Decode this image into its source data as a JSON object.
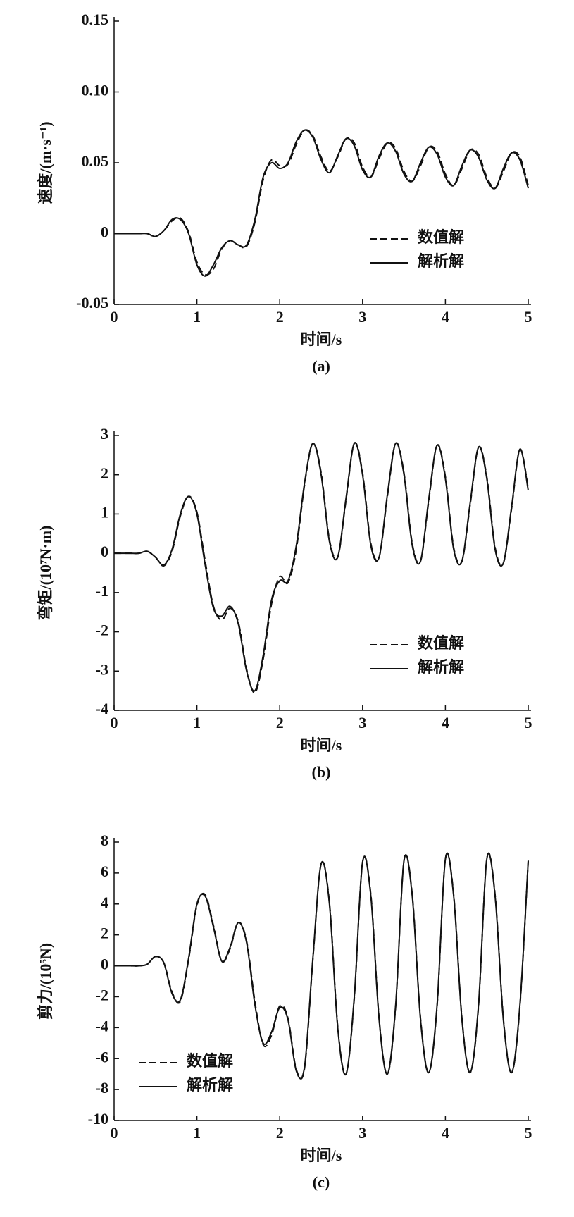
{
  "chart_data": [
    {
      "type": "line",
      "ylabel": "速度/(m·s⁻¹)",
      "xlabel": "时间/s",
      "caption": "(a)",
      "legend": "lower right",
      "xlim": [
        0,
        5
      ],
      "xticks": [
        0,
        1,
        2,
        3,
        4,
        5
      ],
      "ylim": [
        -0.05,
        0.15
      ],
      "yticks": [
        -0.05,
        0,
        0.05,
        {
          "value": 0.1,
          "label": "0.10"
        },
        0.15
      ],
      "x": [
        0,
        0.1,
        0.2,
        0.3,
        0.4,
        0.5,
        0.6,
        0.7,
        0.8,
        0.9,
        1,
        1.1,
        1.2,
        1.3,
        1.4,
        1.5,
        1.6,
        1.7,
        1.8,
        1.9,
        2,
        2.1,
        2.2,
        2.3,
        2.4,
        2.5,
        2.6,
        2.7,
        2.8,
        2.9,
        3,
        3.1,
        3.2,
        3.3,
        3.4,
        3.5,
        3.6,
        3.7,
        3.8,
        3.9,
        4,
        4.1,
        4.2,
        4.3,
        4.4,
        4.5,
        4.6,
        4.7,
        4.8,
        4.9,
        5
      ],
      "series": [
        {
          "name": "数值解",
          "color": "#111111",
          "dashed": true,
          "values": [
            0,
            0,
            0,
            0,
            0,
            -0.002,
            0.002,
            0.009,
            0.011,
            0.001,
            -0.02,
            -0.029,
            -0.025,
            -0.011,
            -0.005,
            -0.008,
            -0.009,
            0.008,
            0.038,
            0.052,
            0.048,
            0.049,
            0.063,
            0.073,
            0.069,
            0.054,
            0.044,
            0.054,
            0.067,
            0.064,
            0.047,
            0.04,
            0.053,
            0.064,
            0.06,
            0.044,
            0.037,
            0.048,
            0.061,
            0.058,
            0.042,
            0.034,
            0.046,
            0.059,
            0.056,
            0.04,
            0.032,
            0.044,
            0.057,
            0.054,
            0.034
          ]
        },
        {
          "name": "解析解",
          "color": "#111111",
          "dashed": false,
          "values": [
            0,
            0,
            0,
            0,
            0,
            -0.002,
            0.002,
            0.01,
            0.01,
            0,
            -0.022,
            -0.03,
            -0.022,
            -0.01,
            -0.005,
            -0.008,
            -0.008,
            0.01,
            0.04,
            0.05,
            0.046,
            0.05,
            0.065,
            0.073,
            0.068,
            0.052,
            0.043,
            0.055,
            0.067,
            0.062,
            0.045,
            0.04,
            0.055,
            0.064,
            0.058,
            0.042,
            0.037,
            0.05,
            0.061,
            0.056,
            0.04,
            0.034,
            0.048,
            0.059,
            0.054,
            0.038,
            0.032,
            0.046,
            0.057,
            0.052,
            0.032
          ]
        }
      ]
    },
    {
      "type": "line",
      "ylabel": "弯矩/(10⁷N·m)",
      "xlabel": "时间/s",
      "caption": "(b)",
      "legend": "lower right",
      "xlim": [
        0,
        5
      ],
      "xticks": [
        0,
        1,
        2,
        3,
        4,
        5
      ],
      "ylim": [
        -4,
        3
      ],
      "yticks": [
        -4,
        -3,
        -2,
        -1,
        0,
        1,
        2,
        3
      ],
      "x": [
        0,
        0.1,
        0.2,
        0.3,
        0.4,
        0.5,
        0.6,
        0.7,
        0.8,
        0.9,
        1,
        1.1,
        1.2,
        1.3,
        1.4,
        1.5,
        1.6,
        1.7,
        1.8,
        1.9,
        2,
        2.1,
        2.2,
        2.3,
        2.4,
        2.5,
        2.6,
        2.7,
        2.8,
        2.9,
        3,
        3.1,
        3.2,
        3.3,
        3.4,
        3.5,
        3.6,
        3.7,
        3.8,
        3.9,
        4,
        4.1,
        4.2,
        4.3,
        4.4,
        4.5,
        4.6,
        4.7,
        4.8,
        4.9,
        5
      ],
      "series": [
        {
          "name": "数值解",
          "color": "#111111",
          "dashed": true,
          "values": [
            0,
            0,
            0,
            0,
            0.05,
            -0.1,
            -0.32,
            0.05,
            0.95,
            1.45,
            1.05,
            -0.2,
            -1.35,
            -1.7,
            -1.4,
            -1.75,
            -2.95,
            -3.55,
            -2.7,
            -1.3,
            -0.6,
            -0.75,
            0.1,
            1.75,
            2.8,
            2.05,
            0.35,
            -0.1,
            1.35,
            2.8,
            2.05,
            0.25,
            -0.1,
            1.45,
            2.8,
            2.05,
            0.25,
            -0.2,
            1.35,
            2.75,
            1.95,
            0.15,
            -0.2,
            1.25,
            2.7,
            1.95,
            0.15,
            -0.25,
            1.15,
            2.65,
            1.65
          ]
        },
        {
          "name": "解析解",
          "color": "#111111",
          "dashed": false,
          "values": [
            0,
            0,
            0,
            0,
            0.05,
            -0.1,
            -0.3,
            0.1,
            1,
            1.45,
            1,
            -0.3,
            -1.4,
            -1.6,
            -1.35,
            -1.8,
            -3,
            -3.5,
            -2.6,
            -1.2,
            -0.7,
            -0.7,
            0.2,
            1.8,
            2.8,
            2,
            0.3,
            -0.1,
            1.4,
            2.8,
            2,
            0.2,
            -0.1,
            1.5,
            2.8,
            2,
            0.2,
            -0.2,
            1.4,
            2.75,
            1.9,
            0.1,
            -0.2,
            1.3,
            2.7,
            1.9,
            0.1,
            -0.25,
            1.2,
            2.65,
            1.6
          ]
        }
      ]
    },
    {
      "type": "line",
      "ylabel": "剪力/(10⁵N)",
      "xlabel": "时间/s",
      "caption": "(c)",
      "legend": "lower left",
      "xlim": [
        0,
        5
      ],
      "xticks": [
        0,
        1,
        2,
        3,
        4,
        5
      ],
      "ylim": [
        -10,
        8
      ],
      "yticks": [
        -10,
        -8,
        -6,
        -4,
        -2,
        0,
        2,
        4,
        6,
        8
      ],
      "x": [
        0,
        0.1,
        0.2,
        0.3,
        0.4,
        0.5,
        0.6,
        0.7,
        0.8,
        0.9,
        1,
        1.1,
        1.2,
        1.3,
        1.4,
        1.5,
        1.6,
        1.7,
        1.8,
        1.9,
        2,
        2.1,
        2.2,
        2.3,
        2.4,
        2.5,
        2.6,
        2.7,
        2.8,
        2.9,
        3,
        3.1,
        3.2,
        3.3,
        3.4,
        3.5,
        3.6,
        3.7,
        3.8,
        3.9,
        4,
        4.1,
        4.2,
        4.3,
        4.4,
        4.5,
        4.6,
        4.7,
        4.8,
        4.9,
        5
      ],
      "series": [
        {
          "name": "数值解",
          "color": "#111111",
          "dashed": true,
          "values": [
            0,
            0,
            0,
            0,
            0.1,
            0.6,
            0.2,
            -1.7,
            -2.3,
            0.4,
            3.9,
            4.6,
            2.6,
            0.3,
            1.1,
            2.8,
            1.6,
            -2.3,
            -5.1,
            -4.5,
            -2.6,
            -3.4,
            -6.7,
            -6.6,
            0.4,
            6.6,
            4.1,
            -3.9,
            -7,
            -2.1,
            6.7,
            4.6,
            -3.4,
            -7,
            -2.6,
            6.8,
            4.6,
            -3.4,
            -6.9,
            -2.6,
            6.9,
            4.6,
            -3.4,
            -6.9,
            -2.6,
            6.9,
            4.6,
            -3.4,
            -6.9,
            -2.6,
            6.8
          ]
        },
        {
          "name": "解析解",
          "color": "#111111",
          "dashed": false,
          "values": [
            0,
            0,
            0,
            0,
            0.1,
            0.6,
            0.2,
            -1.8,
            -2.2,
            0.5,
            4,
            4.5,
            2.5,
            0.3,
            1.2,
            2.8,
            1.5,
            -2.5,
            -5,
            -4.3,
            -2.7,
            -3.5,
            -6.8,
            -6.5,
            0.5,
            6.6,
            4,
            -4,
            -7,
            -2,
            6.7,
            4.5,
            -3.5,
            -7,
            -2.5,
            6.8,
            4.5,
            -3.5,
            -6.9,
            -2.5,
            6.9,
            4.5,
            -3.5,
            -6.9,
            -2.5,
            6.9,
            4.5,
            -3.5,
            -6.9,
            -2.5,
            6.8
          ]
        }
      ]
    }
  ]
}
